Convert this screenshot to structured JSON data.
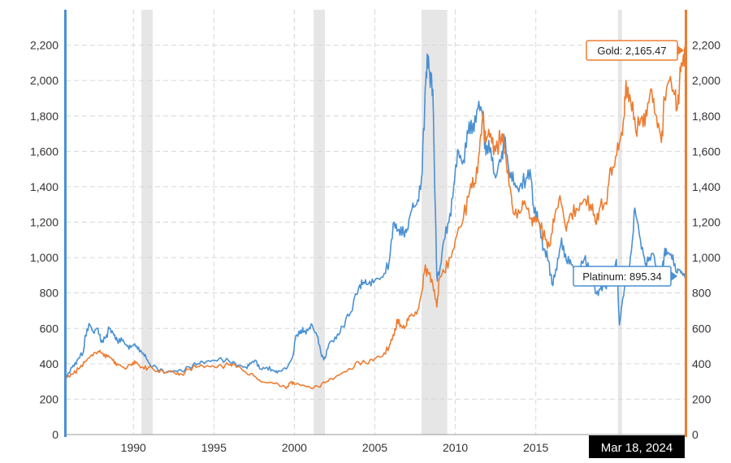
{
  "chart_data": {
    "type": "line",
    "title": "",
    "xlabel": "",
    "ylabel": "",
    "x_range": [
      1985.8,
      2024.3
    ],
    "ylim": [
      0,
      2400
    ],
    "x_ticks": [
      {
        "label": "1990",
        "value": 1990
      },
      {
        "label": "1995",
        "value": 1995
      },
      {
        "label": "2000",
        "value": 2000
      },
      {
        "label": "2005",
        "value": 2005
      },
      {
        "label": "2010",
        "value": 2010
      },
      {
        "label": "2015",
        "value": 2015
      }
    ],
    "y_ticks": [
      {
        "label": "0",
        "value": 0
      },
      {
        "label": "200",
        "value": 200
      },
      {
        "label": "400",
        "value": 400
      },
      {
        "label": "600",
        "value": 600
      },
      {
        "label": "800",
        "value": 800
      },
      {
        "label": "1,000",
        "value": 1000
      },
      {
        "label": "1,200",
        "value": 1200
      },
      {
        "label": "1,400",
        "value": 1400
      },
      {
        "label": "1,600",
        "value": 1600
      },
      {
        "label": "1,800",
        "value": 1800
      },
      {
        "label": "2,000",
        "value": 2000
      },
      {
        "label": "2,200",
        "value": 2200
      }
    ],
    "recessions": [
      [
        1990.5,
        1991.2
      ],
      [
        2001.2,
        2001.9
      ],
      [
        2007.9,
        2009.5
      ],
      [
        2020.1,
        2020.35
      ]
    ],
    "series": [
      {
        "name": "Platinum",
        "color": "#4a90d2",
        "points": [
          [
            1985.8,
            320
          ],
          [
            1986.2,
            380
          ],
          [
            1986.5,
            420
          ],
          [
            1986.9,
            470
          ],
          [
            1987.0,
            560
          ],
          [
            1987.3,
            620
          ],
          [
            1987.5,
            580
          ],
          [
            1987.8,
            600
          ],
          [
            1988.0,
            520
          ],
          [
            1988.3,
            550
          ],
          [
            1988.5,
            600
          ],
          [
            1988.8,
            560
          ],
          [
            1989.0,
            530
          ],
          [
            1989.3,
            530
          ],
          [
            1989.6,
            500
          ],
          [
            1989.9,
            500
          ],
          [
            1990.2,
            500
          ],
          [
            1990.5,
            470
          ],
          [
            1990.8,
            430
          ],
          [
            1991.0,
            400
          ],
          [
            1991.5,
            370
          ],
          [
            1992.0,
            350
          ],
          [
            1992.5,
            360
          ],
          [
            1993.0,
            360
          ],
          [
            1993.5,
            380
          ],
          [
            1994.0,
            400
          ],
          [
            1994.5,
            410
          ],
          [
            1995.0,
            420
          ],
          [
            1995.5,
            425
          ],
          [
            1996.0,
            410
          ],
          [
            1996.5,
            390
          ],
          [
            1997.0,
            380
          ],
          [
            1997.3,
            400
          ],
          [
            1997.6,
            420
          ],
          [
            1997.9,
            370
          ],
          [
            1998.3,
            380
          ],
          [
            1998.7,
            360
          ],
          [
            1999.0,
            360
          ],
          [
            1999.5,
            370
          ],
          [
            1999.9,
            440
          ],
          [
            2000.1,
            560
          ],
          [
            2000.4,
            590
          ],
          [
            2000.6,
            580
          ],
          [
            2000.9,
            600
          ],
          [
            2001.1,
            620
          ],
          [
            2001.4,
            560
          ],
          [
            2001.7,
            440
          ],
          [
            2001.9,
            430
          ],
          [
            2002.2,
            520
          ],
          [
            2002.6,
            540
          ],
          [
            2003.0,
            610
          ],
          [
            2003.5,
            690
          ],
          [
            2004.0,
            830
          ],
          [
            2004.3,
            860
          ],
          [
            2004.6,
            850
          ],
          [
            2005.0,
            870
          ],
          [
            2005.5,
            890
          ],
          [
            2005.9,
            980
          ],
          [
            2006.2,
            1200
          ],
          [
            2006.5,
            1160
          ],
          [
            2006.8,
            1130
          ],
          [
            2007.0,
            1160
          ],
          [
            2007.3,
            1270
          ],
          [
            2007.6,
            1300
          ],
          [
            2007.9,
            1450
          ],
          [
            2008.1,
            1850
          ],
          [
            2008.25,
            2150
          ],
          [
            2008.4,
            2050
          ],
          [
            2008.6,
            1950
          ],
          [
            2008.7,
            1500
          ],
          [
            2008.85,
            900
          ],
          [
            2009.0,
            900
          ],
          [
            2009.3,
            1100
          ],
          [
            2009.6,
            1200
          ],
          [
            2009.9,
            1400
          ],
          [
            2010.2,
            1600
          ],
          [
            2010.5,
            1550
          ],
          [
            2010.8,
            1700
          ],
          [
            2011.1,
            1760
          ],
          [
            2011.4,
            1840
          ],
          [
            2011.7,
            1800
          ],
          [
            2011.9,
            1580
          ],
          [
            2012.2,
            1620
          ],
          [
            2012.5,
            1450
          ],
          [
            2012.9,
            1600
          ],
          [
            2013.1,
            1680
          ],
          [
            2013.4,
            1450
          ],
          [
            2013.7,
            1420
          ],
          [
            2014.0,
            1400
          ],
          [
            2014.4,
            1450
          ],
          [
            2014.7,
            1450
          ],
          [
            2014.9,
            1250
          ],
          [
            2015.2,
            1200
          ],
          [
            2015.5,
            1050
          ],
          [
            2015.8,
            980
          ],
          [
            2016.0,
            850
          ],
          [
            2016.3,
            930
          ],
          [
            2016.6,
            1110
          ],
          [
            2016.9,
            980
          ],
          [
            2017.2,
            960
          ],
          [
            2017.6,
            920
          ],
          [
            2018.0,
            990
          ],
          [
            2018.4,
            920
          ],
          [
            2018.7,
            800
          ],
          [
            2019.0,
            820
          ],
          [
            2019.3,
            840
          ],
          [
            2019.7,
            900
          ],
          [
            2020.0,
            990
          ],
          [
            2020.2,
            620
          ],
          [
            2020.4,
            770
          ],
          [
            2020.7,
            880
          ],
          [
            2021.0,
            1100
          ],
          [
            2021.15,
            1280
          ],
          [
            2021.5,
            1100
          ],
          [
            2021.8,
            960
          ],
          [
            2022.0,
            980
          ],
          [
            2022.3,
            1020
          ],
          [
            2022.6,
            880
          ],
          [
            2022.9,
            980
          ],
          [
            2023.1,
            1050
          ],
          [
            2023.4,
            1020
          ],
          [
            2023.7,
            920
          ],
          [
            2023.9,
            930
          ],
          [
            2024.1,
            910
          ],
          [
            2024.3,
            895.34
          ]
        ]
      },
      {
        "name": "Gold",
        "color": "#ed7d31",
        "points": [
          [
            1985.8,
            320
          ],
          [
            1986.2,
            340
          ],
          [
            1986.6,
            370
          ],
          [
            1987.0,
            410
          ],
          [
            1987.4,
            450
          ],
          [
            1987.8,
            470
          ],
          [
            1988.1,
            460
          ],
          [
            1988.4,
            440
          ],
          [
            1988.7,
            420
          ],
          [
            1989.0,
            400
          ],
          [
            1989.4,
            380
          ],
          [
            1989.9,
            390
          ],
          [
            1990.2,
            410
          ],
          [
            1990.5,
            380
          ],
          [
            1990.9,
            375
          ],
          [
            1991.5,
            360
          ],
          [
            1992.0,
            350
          ],
          [
            1992.6,
            345
          ],
          [
            1993.0,
            340
          ],
          [
            1993.5,
            370
          ],
          [
            1994.0,
            385
          ],
          [
            1994.5,
            385
          ],
          [
            1995.0,
            385
          ],
          [
            1995.5,
            385
          ],
          [
            1996.0,
            395
          ],
          [
            1996.5,
            385
          ],
          [
            1997.0,
            350
          ],
          [
            1997.5,
            330
          ],
          [
            1997.9,
            300
          ],
          [
            1998.5,
            295
          ],
          [
            1999.0,
            285
          ],
          [
            1999.5,
            260
          ],
          [
            1999.8,
            300
          ],
          [
            2000.0,
            285
          ],
          [
            2000.5,
            280
          ],
          [
            2001.0,
            265
          ],
          [
            2001.5,
            270
          ],
          [
            2002.0,
            300
          ],
          [
            2002.5,
            320
          ],
          [
            2003.0,
            350
          ],
          [
            2003.5,
            370
          ],
          [
            2004.0,
            410
          ],
          [
            2004.5,
            400
          ],
          [
            2005.0,
            430
          ],
          [
            2005.5,
            445
          ],
          [
            2005.9,
            500
          ],
          [
            2006.2,
            560
          ],
          [
            2006.4,
            650
          ],
          [
            2006.6,
            620
          ],
          [
            2006.9,
            610
          ],
          [
            2007.2,
            670
          ],
          [
            2007.6,
            680
          ],
          [
            2007.9,
            800
          ],
          [
            2008.1,
            930
          ],
          [
            2008.3,
            920
          ],
          [
            2008.6,
            850
          ],
          [
            2008.85,
            720
          ],
          [
            2009.0,
            880
          ],
          [
            2009.3,
            920
          ],
          [
            2009.7,
            1000
          ],
          [
            2010.0,
            1100
          ],
          [
            2010.5,
            1220
          ],
          [
            2010.9,
            1380
          ],
          [
            2011.2,
            1420
          ],
          [
            2011.5,
            1600
          ],
          [
            2011.7,
            1800
          ],
          [
            2011.9,
            1650
          ],
          [
            2012.2,
            1700
          ],
          [
            2012.5,
            1600
          ],
          [
            2012.9,
            1700
          ],
          [
            2013.1,
            1600
          ],
          [
            2013.4,
            1400
          ],
          [
            2013.6,
            1250
          ],
          [
            2014.0,
            1250
          ],
          [
            2014.3,
            1320
          ],
          [
            2014.7,
            1220
          ],
          [
            2014.9,
            1200
          ],
          [
            2015.2,
            1200
          ],
          [
            2015.6,
            1100
          ],
          [
            2015.9,
            1070
          ],
          [
            2016.2,
            1250
          ],
          [
            2016.5,
            1350
          ],
          [
            2016.9,
            1150
          ],
          [
            2017.2,
            1250
          ],
          [
            2017.6,
            1270
          ],
          [
            2018.0,
            1330
          ],
          [
            2018.4,
            1300
          ],
          [
            2018.7,
            1200
          ],
          [
            2019.0,
            1290
          ],
          [
            2019.4,
            1300
          ],
          [
            2019.6,
            1500
          ],
          [
            2019.9,
            1520
          ],
          [
            2020.2,
            1650
          ],
          [
            2020.5,
            1800
          ],
          [
            2020.6,
            2000
          ],
          [
            2020.9,
            1880
          ],
          [
            2021.2,
            1720
          ],
          [
            2021.6,
            1800
          ],
          [
            2021.9,
            1800
          ],
          [
            2022.2,
            1950
          ],
          [
            2022.5,
            1800
          ],
          [
            2022.8,
            1650
          ],
          [
            2023.0,
            1900
          ],
          [
            2023.3,
            2000
          ],
          [
            2023.6,
            1920
          ],
          [
            2023.8,
            1850
          ],
          [
            2024.0,
            2050
          ],
          [
            2024.2,
            2150
          ],
          [
            2024.3,
            2165.47
          ]
        ]
      }
    ],
    "tooltips": {
      "gold": "Gold: 2,165.47",
      "platinum": "Platinum: 895.34",
      "date": "Mar 18, 2024"
    }
  }
}
